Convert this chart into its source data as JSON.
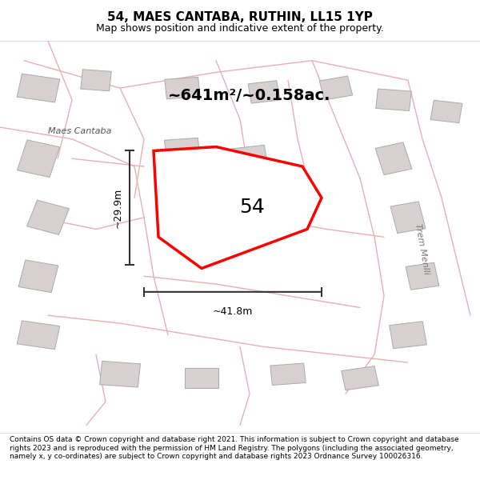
{
  "title": "54, MAES CANTABA, RUTHIN, LL15 1YP",
  "subtitle": "Map shows position and indicative extent of the property.",
  "area_label": "~641m²/~0.158ac.",
  "property_number": "54",
  "dim_width": "~41.8m",
  "dim_height": "~29.9m",
  "street_label_left": "Maes Cantaba",
  "street_label_right": "Trem Menlli",
  "copyright_text": "Contains OS data © Crown copyright and database right 2021. This information is subject to Crown copyright and database rights 2023 and is reproduced with the permission of HM Land Registry. The polygons (including the associated geometry, namely x, y co-ordinates) are subject to Crown copyright and database rights 2023 Ordnance Survey 100026316.",
  "background_color": "#f5f0f0",
  "map_bg": "#f8f4f4",
  "road_color": "#e8b0b0",
  "building_color": "#d8d0d0",
  "property_color": "#ff0000",
  "property_fill": "#ffffff",
  "dim_color": "#333333",
  "title_fontsize": 11,
  "subtitle_fontsize": 9,
  "area_fontsize": 14,
  "property_label_fontsize": 18,
  "copyright_fontsize": 6.5
}
